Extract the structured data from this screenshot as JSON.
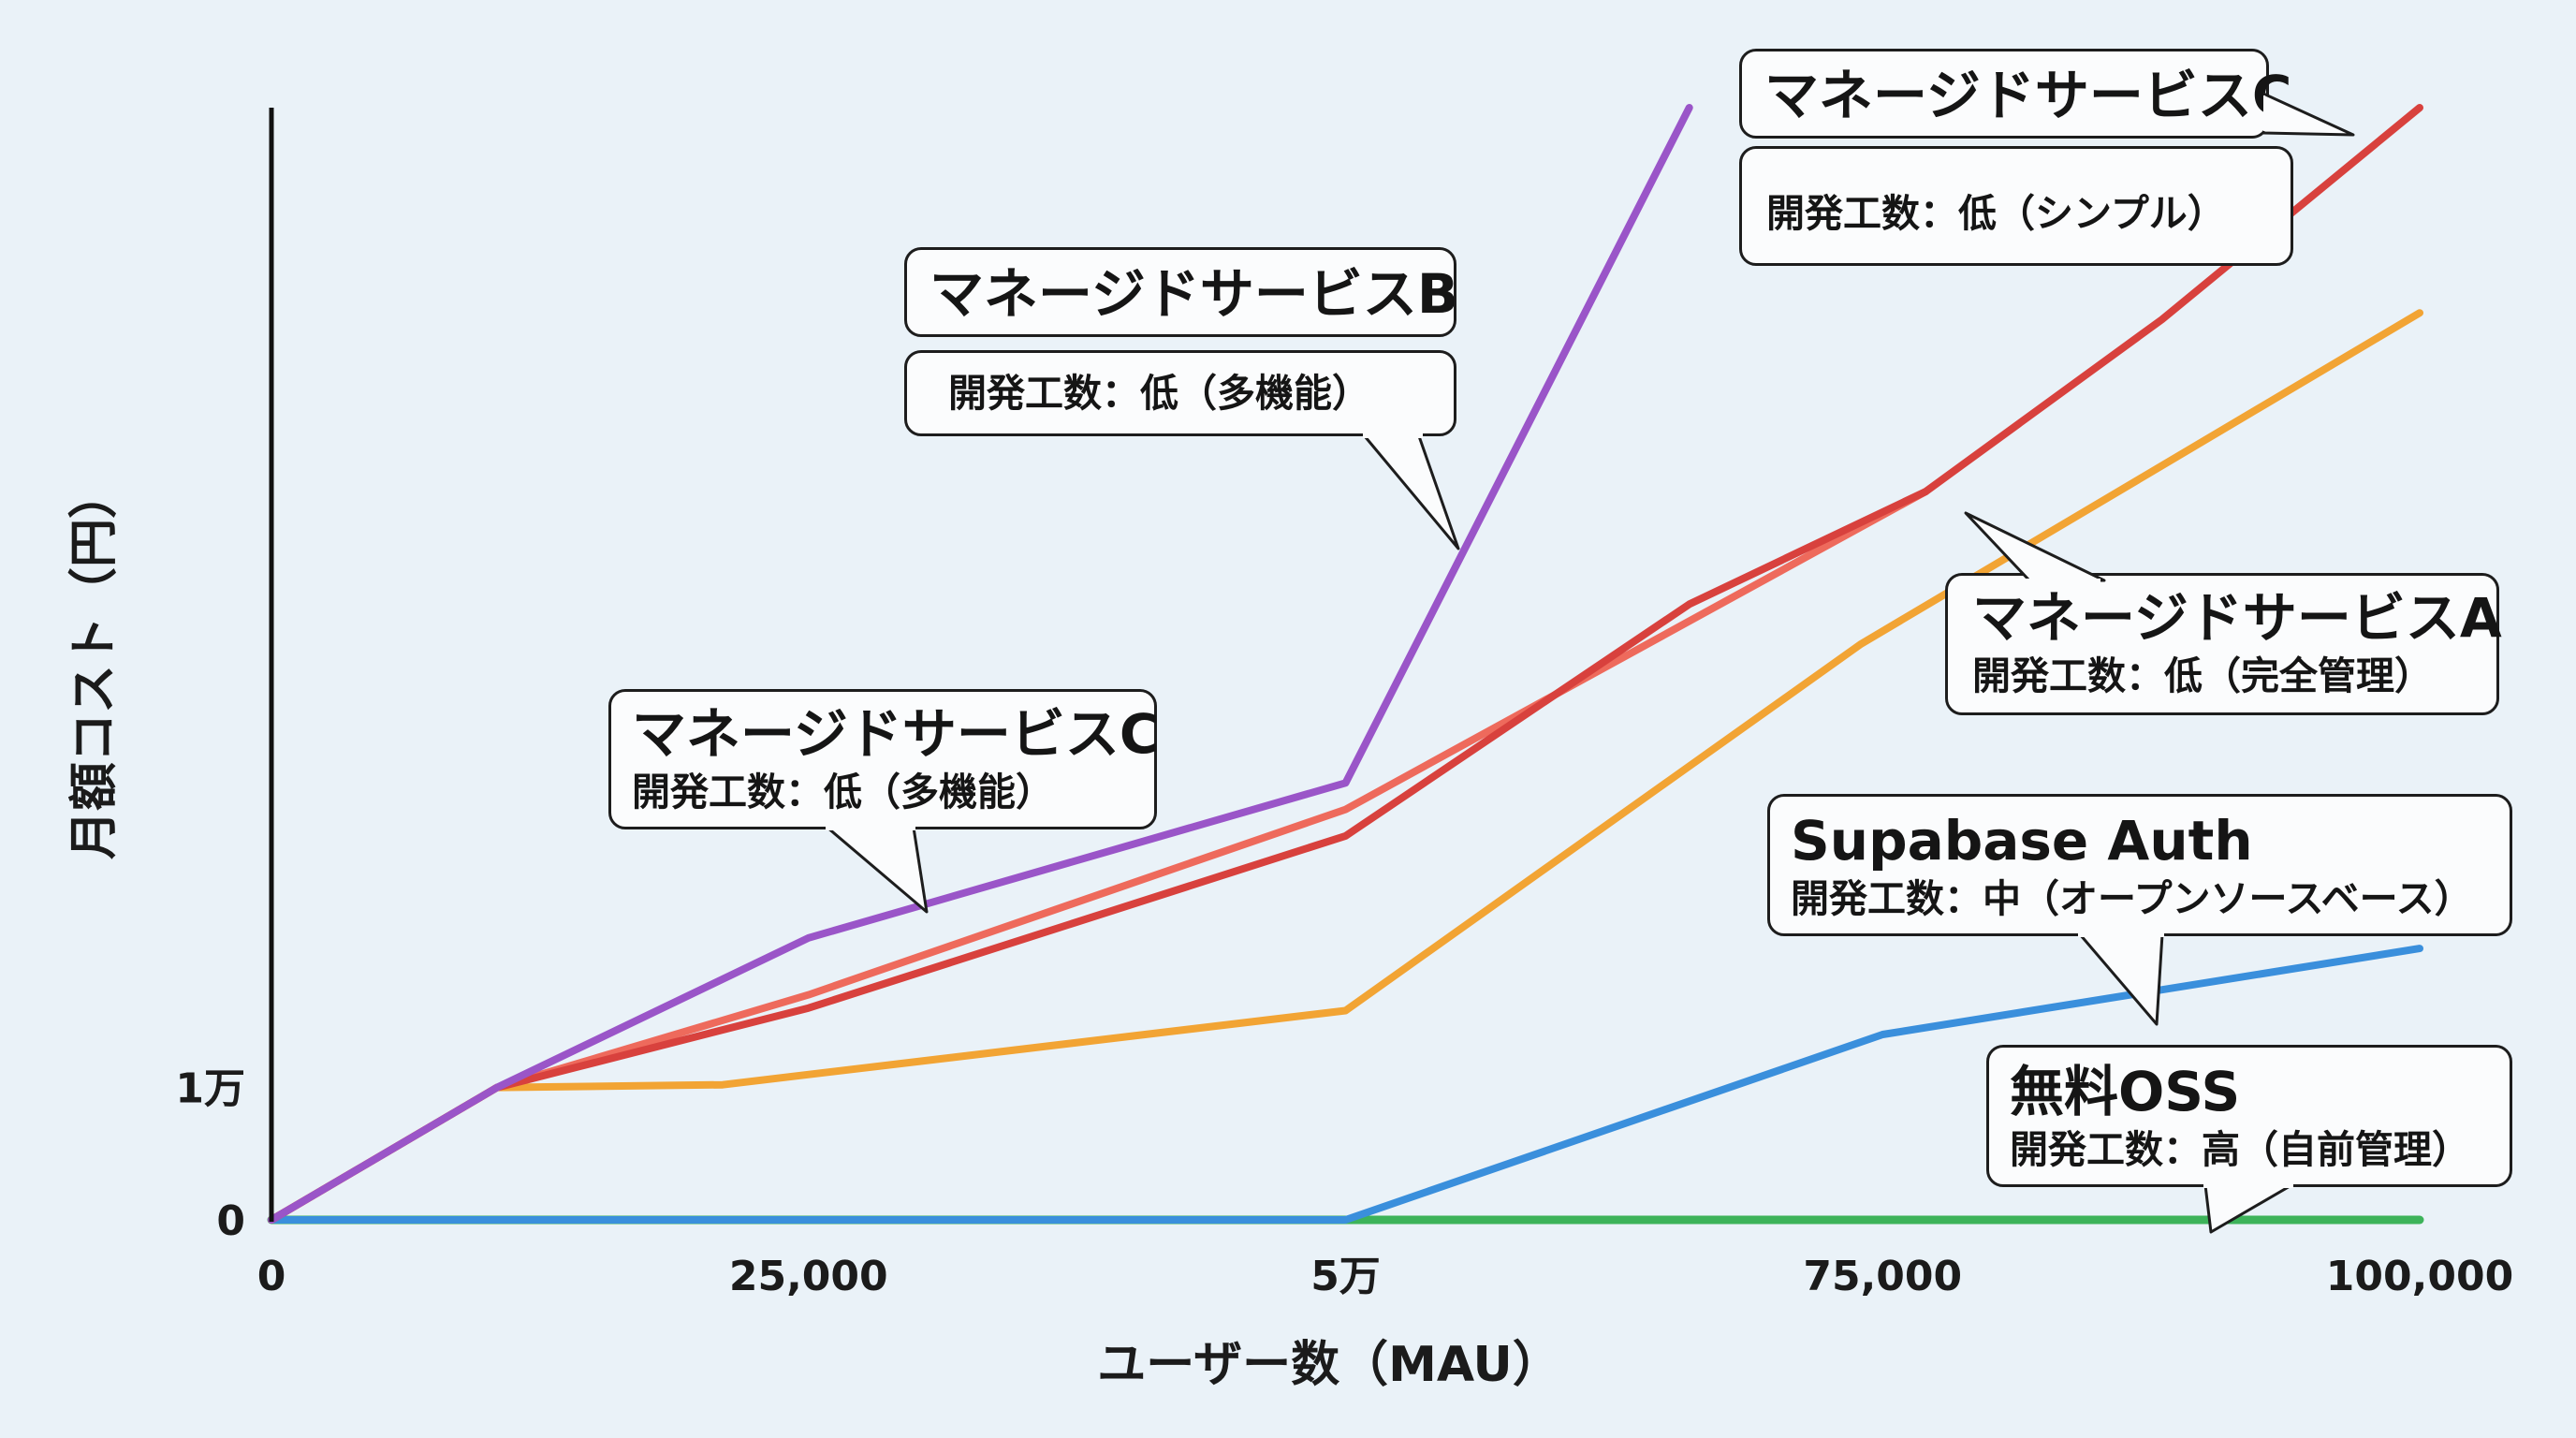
{
  "chart_data": {
    "type": "line",
    "xlabel": "ユーザー数（MAU）",
    "ylabel": "月額コスト（円）",
    "x_ticks": [
      {
        "value": 0,
        "label": "0"
      },
      {
        "value": 25000,
        "label": "25,000"
      },
      {
        "value": 50000,
        "label": "5万"
      },
      {
        "value": 75000,
        "label": "75,000"
      },
      {
        "value": 100000,
        "label": "100,000"
      }
    ],
    "y_ticks": [
      {
        "value": 0,
        "label": "0"
      },
      {
        "value": 10000,
        "label": "1万"
      }
    ],
    "xlim": [
      0,
      100000
    ],
    "ylim": [
      0,
      84000
    ],
    "grid": false,
    "series": [
      {
        "key": "oss",
        "color": "#3db35a",
        "x": [
          0,
          100000
        ],
        "y": [
          0,
          0
        ]
      },
      {
        "key": "supabase",
        "color": "#3a8fdc",
        "x": [
          0,
          50000,
          75000,
          100000
        ],
        "y": [
          0,
          0,
          14000,
          20500
        ]
      },
      {
        "key": "a",
        "color": "#f2a434",
        "x": [
          0,
          10500,
          21000,
          50000,
          74000,
          100000
        ],
        "y": [
          0,
          10000,
          10200,
          15800,
          43500,
          68500
        ]
      },
      {
        "key": "c_light",
        "color": "#ee6a5c",
        "x": [
          0,
          10500,
          25000,
          50000,
          77000
        ],
        "y": [
          0,
          10000,
          17000,
          31000,
          55000
        ]
      },
      {
        "key": "c_dark",
        "color": "#d8413d",
        "x": [
          0,
          10500,
          25000,
          50000,
          66000,
          77000,
          88000,
          100000
        ],
        "y": [
          0,
          10000,
          16000,
          29000,
          46500,
          55000,
          68000,
          84000
        ]
      },
      {
        "key": "b",
        "color": "#9a55c8",
        "x": [
          0,
          10500,
          25000,
          50000,
          66000
        ],
        "y": [
          0,
          10000,
          21300,
          33000,
          84000
        ]
      }
    ]
  },
  "callouts": [
    {
      "name": "マネージドサービスC",
      "sub": "開発工数：低（シンプル）"
    },
    {
      "name": "マネージドサービスB",
      "sub": "開発工数：低（多機能）"
    },
    {
      "name": "マネージドサービスA",
      "sub": "開発工数：低（完全管理）"
    },
    {
      "name": "マネージドサービスC",
      "sub": "開発工数：低（多機能）"
    },
    {
      "name": "Supabase Auth",
      "sub": "開発工数：中（オープンソースベース）"
    },
    {
      "name": "無料OSS",
      "sub": "開発工数：高（自前管理）"
    }
  ]
}
